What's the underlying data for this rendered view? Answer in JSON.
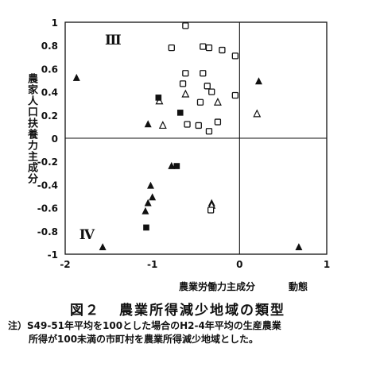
{
  "chart_data": {
    "type": "scatter",
    "xlabel": "農業労働力主成分",
    "xlabel_extra": "動態",
    "ylabel": "農家人口扶養力主成分",
    "xlim": [
      -2,
      1
    ],
    "ylim": [
      -1,
      1
    ],
    "x_ticks": [
      -2,
      -1,
      0,
      1
    ],
    "y_ticks": [
      1,
      0.8,
      0.6,
      0.4,
      0.2,
      0,
      -0.2,
      -0.4,
      -0.6,
      -0.8,
      -1
    ],
    "x_tick_labels": [
      "-2",
      "-1",
      "0",
      "1"
    ],
    "y_tick_labels": [
      "1",
      "0.8",
      "0.6",
      "0.4",
      "0.2",
      "0",
      "-0.2",
      "-0.4",
      "-0.6",
      "-0.8",
      "-1"
    ],
    "quadrant_labels": [
      {
        "text": "Ⅲ",
        "x": -1.45,
        "y": 0.85
      },
      {
        "text": "Ⅳ",
        "x": -1.75,
        "y": -0.83
      }
    ],
    "series": [
      {
        "marker": "filled-triangle",
        "points": [
          [
            -1.87,
            0.52
          ],
          [
            -1.05,
            0.12
          ],
          [
            0.22,
            0.49
          ],
          [
            -0.78,
            -0.24
          ],
          [
            -1.02,
            -0.41
          ],
          [
            -1.0,
            -0.51
          ],
          [
            -1.05,
            -0.56
          ],
          [
            -1.08,
            -0.63
          ],
          [
            -0.32,
            -0.56
          ],
          [
            -1.57,
            -0.94
          ],
          [
            0.68,
            -0.94
          ]
        ]
      },
      {
        "marker": "open-triangle",
        "points": [
          [
            -0.88,
            0.11
          ],
          [
            -0.62,
            0.38
          ],
          [
            -0.92,
            0.32
          ],
          [
            -0.25,
            0.31
          ],
          [
            0.2,
            0.21
          ],
          [
            -0.32,
            -0.58
          ]
        ]
      },
      {
        "marker": "filled-square",
        "points": [
          [
            -0.93,
            0.35
          ],
          [
            -0.68,
            0.22
          ],
          [
            -0.72,
            -0.24
          ],
          [
            -1.07,
            -0.77
          ]
        ]
      },
      {
        "marker": "open-square",
        "points": [
          [
            -0.62,
            0.97
          ],
          [
            -0.78,
            0.78
          ],
          [
            -0.42,
            0.79
          ],
          [
            -0.35,
            0.78
          ],
          [
            -0.2,
            0.76
          ],
          [
            -0.05,
            0.71
          ],
          [
            -0.62,
            0.56
          ],
          [
            -0.42,
            0.56
          ],
          [
            -0.65,
            0.47
          ],
          [
            -0.37,
            0.45
          ],
          [
            -0.32,
            0.4
          ],
          [
            -0.45,
            0.31
          ],
          [
            -0.05,
            0.37
          ],
          [
            -0.47,
            0.11
          ],
          [
            -0.6,
            0.12
          ],
          [
            -0.35,
            0.06
          ],
          [
            -0.25,
            0.14
          ],
          [
            -0.33,
            -0.62
          ]
        ]
      }
    ]
  },
  "caption": {
    "figure_label": "図２",
    "figure_title": "農業所得減少地域の類型"
  },
  "note": {
    "line1": "注）S49-51年平均を100とした場合のH2-4年平均の生産農業",
    "line2": "所得が100未満の市町村を農業所得減少地域とした。"
  }
}
